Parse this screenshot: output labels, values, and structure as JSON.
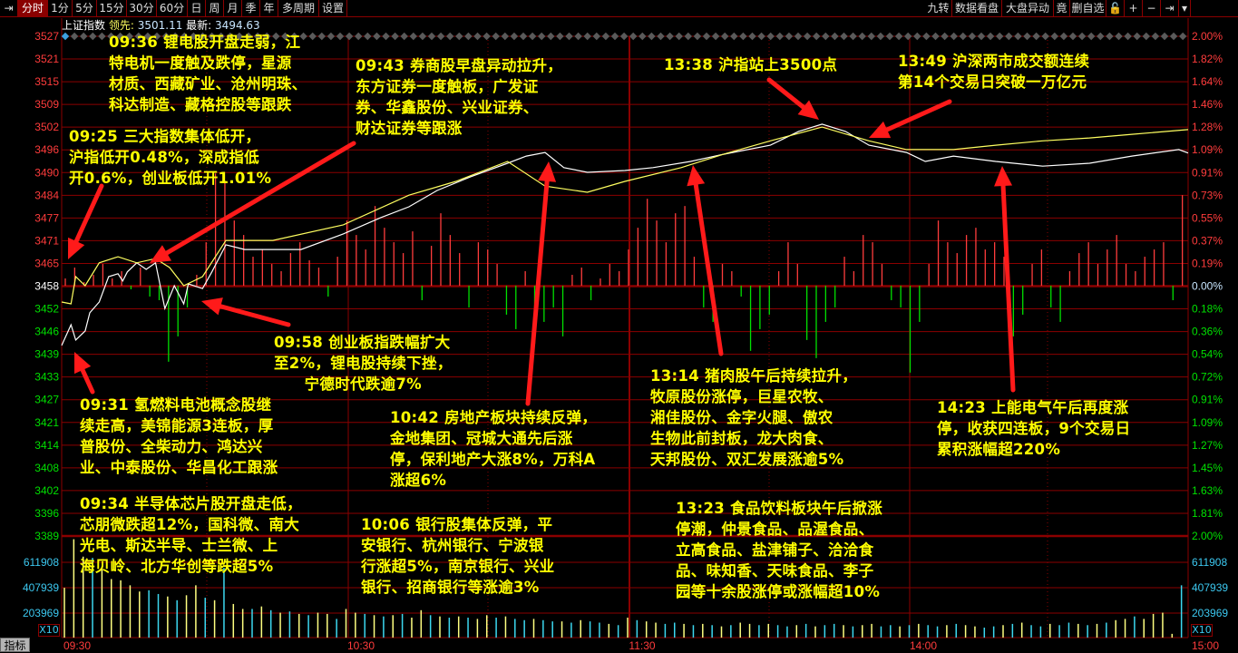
{
  "toolbar": {
    "left": [
      {
        "label": "⇥",
        "icon": "jump-to-end-icon"
      },
      {
        "label": "分时",
        "active": true
      },
      {
        "label": "1分"
      },
      {
        "label": "5分"
      },
      {
        "label": "15分"
      },
      {
        "label": "30分"
      },
      {
        "label": "60分"
      },
      {
        "label": "日"
      },
      {
        "label": "周"
      },
      {
        "label": "月"
      },
      {
        "label": "季"
      },
      {
        "label": "年"
      },
      {
        "label": "多周期"
      },
      {
        "label": "设置"
      }
    ],
    "right": [
      {
        "label": "九转"
      },
      {
        "label": "数据看盘"
      },
      {
        "label": "大盘异动"
      },
      {
        "label": "竟"
      },
      {
        "label": "删自选"
      },
      {
        "label": "🔓",
        "icon": "lock-open-icon"
      },
      {
        "label": "+",
        "icon": "plus-icon"
      },
      {
        "label": "−",
        "icon": "minus-icon"
      },
      {
        "label": "⇥",
        "icon": "jump-to-end-icon"
      },
      {
        "label": "▾",
        "icon": "dropdown-icon"
      }
    ]
  },
  "info": {
    "name": "上证指数",
    "lead_label": "领先:",
    "lead_value": "3501.11",
    "last_label": "最新:",
    "last_value": "3494.63"
  },
  "bottom": {
    "indicator_button": "指标",
    "scale_label": "X10"
  },
  "colors": {
    "up": "#ff3c3c",
    "down": "#00e000",
    "grid": "#8b0000",
    "price_line": "#ffffff",
    "lead_line": "#ffff60",
    "annotation": "#ffff00",
    "arrow": "#ff1a1a",
    "volume_up": "#ffff80",
    "volume_down": "#3cd8f0"
  },
  "chart_data": {
    "type": "line",
    "title": "",
    "x_ticks": [
      "09:30",
      "10:30",
      "11:30",
      "14:00",
      "15:00"
    ],
    "price_ticks": [
      "3527",
      "3521",
      "3515",
      "3509",
      "3502",
      "3496",
      "3490",
      "3484",
      "3477",
      "3471",
      "3465",
      "3458",
      "3452",
      "3446",
      "3439",
      "3433",
      "3427",
      "3421",
      "3414",
      "3408",
      "3402",
      "3396",
      "3389"
    ],
    "pct_ticks": [
      "2.00%",
      "1.82%",
      "1.64%",
      "1.46%",
      "1.28%",
      "1.09%",
      "0.91%",
      "0.73%",
      "0.55%",
      "0.37%",
      "0.19%",
      "0.00%",
      "0.18%",
      "0.36%",
      "0.54%",
      "0.72%",
      "0.91%",
      "1.09%",
      "1.27%",
      "1.45%",
      "1.63%",
      "1.81%",
      "2.00%"
    ],
    "ylim": [
      3389,
      3527
    ],
    "prev_close": 3458,
    "volume_ticks": [
      "611908",
      "407939",
      "203969"
    ],
    "series": [
      {
        "name": "最新",
        "points": [
          [
            "09:30",
            3441.5
          ],
          [
            "09:32",
            3447.2
          ],
          [
            "09:33",
            3443.0
          ],
          [
            "09:35",
            3445.5
          ],
          [
            "09:36",
            3450.5
          ],
          [
            "09:38",
            3453.5
          ],
          [
            "09:40",
            3460.5
          ],
          [
            "09:42",
            3461.3
          ],
          [
            "09:43",
            3459.3
          ],
          [
            "09:44",
            3461.8
          ],
          [
            "09:46",
            3464.3
          ],
          [
            "09:48",
            3462.5
          ],
          [
            "09:50",
            3464.3
          ],
          [
            "09:52",
            3451.7
          ],
          [
            "09:54",
            3458.0
          ],
          [
            "09:56",
            3453.0
          ],
          [
            "09:57",
            3458.5
          ],
          [
            "10:00",
            3457.2
          ],
          [
            "10:02",
            3461.8
          ],
          [
            "10:05",
            3469.3
          ],
          [
            "10:09",
            3468.0
          ],
          [
            "10:15",
            3468.0
          ],
          [
            "10:21",
            3468.0
          ],
          [
            "10:30",
            3472.3
          ],
          [
            "10:38",
            3476.8
          ],
          [
            "10:44",
            3479.8
          ],
          [
            "10:50",
            3484.3
          ],
          [
            "10:57",
            3488.0
          ],
          [
            "11:05",
            3491.8
          ],
          [
            "11:09",
            3493.8
          ],
          [
            "11:13",
            3494.8
          ],
          [
            "11:17",
            3490.6
          ],
          [
            "11:22",
            3489.3
          ],
          [
            "13:00",
            3489.8
          ],
          [
            "13:06",
            3490.6
          ],
          [
            "13:14",
            3492.3
          ],
          [
            "13:21",
            3494.3
          ],
          [
            "13:31",
            3496.8
          ],
          [
            "13:37",
            3500.6
          ],
          [
            "13:42",
            3502.6
          ],
          [
            "13:47",
            3500.6
          ],
          [
            "13:52",
            3496.8
          ],
          [
            "14:00",
            3494.8
          ],
          [
            "14:04",
            3492.3
          ],
          [
            "14:10",
            3493.8
          ],
          [
            "14:19",
            3492.3
          ],
          [
            "14:29",
            3491.0
          ],
          [
            "14:39",
            3491.8
          ],
          [
            "14:48",
            3493.8
          ],
          [
            "14:58",
            3495.6
          ],
          [
            "15:00",
            3494.63
          ]
        ]
      },
      {
        "name": "领先",
        "points": [
          [
            "09:30",
            3453.5
          ],
          [
            "09:32",
            3453.0
          ],
          [
            "09:33",
            3460.5
          ],
          [
            "09:35",
            3458.0
          ],
          [
            "09:38",
            3464.3
          ],
          [
            "09:42",
            3466.0
          ],
          [
            "09:46",
            3464.3
          ],
          [
            "09:50",
            3465.5
          ],
          [
            "09:53",
            3463.0
          ],
          [
            "09:56",
            3458.0
          ],
          [
            "10:00",
            3460.5
          ],
          [
            "10:05",
            3470.5
          ],
          [
            "10:15",
            3470.5
          ],
          [
            "10:30",
            3474.8
          ],
          [
            "10:44",
            3483.0
          ],
          [
            "10:54",
            3486.8
          ],
          [
            "11:05",
            3492.3
          ],
          [
            "11:13",
            3485.5
          ],
          [
            "11:22",
            3483.8
          ],
          [
            "13:00",
            3486.8
          ],
          [
            "13:12",
            3490.6
          ],
          [
            "13:21",
            3494.3
          ],
          [
            "13:31",
            3498.0
          ],
          [
            "13:42",
            3501.8
          ],
          [
            "13:52",
            3498.0
          ],
          [
            "14:00",
            3495.6
          ],
          [
            "14:10",
            3495.6
          ],
          [
            "14:19",
            3496.8
          ],
          [
            "14:29",
            3498.0
          ],
          [
            "14:39",
            3498.8
          ],
          [
            "14:48",
            3499.8
          ],
          [
            "15:00",
            3501.11
          ]
        ]
      }
    ],
    "breadth_bars": [
      2,
      5,
      1,
      3,
      6,
      2,
      4,
      -1,
      5,
      -3,
      -4,
      -21,
      -14,
      -6,
      3,
      12,
      31,
      29,
      18,
      14,
      8,
      10,
      6,
      4,
      9,
      12,
      7,
      5,
      -3,
      8,
      18,
      14,
      10,
      22,
      16,
      12,
      9,
      15,
      -4,
      11,
      20,
      14,
      9,
      -6,
      12,
      10,
      6,
      -8,
      -12,
      4,
      -16,
      -10,
      -6,
      -14,
      3,
      5,
      -4,
      2,
      6,
      4,
      10,
      16,
      24,
      18,
      12,
      20,
      22,
      8,
      -6,
      -10,
      6,
      4,
      -3,
      -18,
      -12,
      -8,
      4,
      12,
      6,
      -15,
      -20,
      -10,
      -6,
      8,
      4,
      14,
      12,
      6,
      -4,
      -6,
      -24,
      -10,
      6,
      18,
      12,
      9,
      14,
      16,
      10,
      12,
      8,
      -14,
      -8,
      6,
      10,
      -6,
      -10,
      4,
      9,
      12,
      6,
      10,
      14,
      6,
      4,
      8,
      10,
      12,
      -4,
      25
    ],
    "volume": [
      400000,
      790000,
      650000,
      640000,
      560000,
      470000,
      460000,
      420000,
      370000,
      380000,
      350000,
      330000,
      300000,
      340000,
      420000,
      320000,
      300000,
      560000,
      270000,
      230000,
      230000,
      250000,
      220000,
      200000,
      210000,
      190000,
      180000,
      200000,
      190000,
      150000,
      230000,
      200000,
      190000,
      180000,
      170000,
      180000,
      190000,
      160000,
      220000,
      180000,
      170000,
      160000,
      170000,
      160000,
      150000,
      180000,
      160000,
      170000,
      150000,
      140000,
      150000,
      140000,
      130000,
      130000,
      120000,
      140000,
      130000,
      120000,
      110000,
      100000,
      160000,
      140000,
      130000,
      120000,
      110000,
      120000,
      110000,
      100000,
      110000,
      100000,
      90000,
      100000,
      120000,
      110000,
      100000,
      110000,
      100000,
      90000,
      100000,
      110000,
      90000,
      100000,
      110000,
      100000,
      90000,
      100000,
      110000,
      90000,
      100000,
      90000,
      100000,
      110000,
      100000,
      90000,
      100000,
      110000,
      100000,
      90000,
      80000,
      90000,
      100000,
      110000,
      120000,
      100000,
      90000,
      110000,
      100000,
      120000,
      110000,
      100000,
      110000,
      120000,
      140000,
      150000,
      170000,
      150000,
      190000,
      200000,
      30000,
      420000
    ],
    "volume_up": [
      1,
      1,
      1,
      0,
      1,
      1,
      1,
      1,
      1,
      0,
      0,
      1,
      0,
      1,
      1,
      0,
      1,
      0,
      1,
      1,
      0,
      1,
      0,
      1,
      0,
      1,
      0,
      1,
      1,
      0,
      1,
      1,
      0,
      1,
      0,
      1,
      0,
      1,
      1,
      0,
      1,
      0,
      1,
      0,
      1,
      1,
      0,
      1,
      0,
      0,
      1,
      0,
      0,
      1,
      0,
      1,
      0,
      0,
      1,
      0,
      1,
      0,
      1,
      1,
      0,
      0,
      1,
      0,
      1,
      0,
      1,
      0,
      1,
      1,
      0,
      1,
      0,
      0,
      1,
      0,
      1,
      0,
      0,
      1,
      0,
      1,
      1,
      0,
      0,
      1,
      0,
      1,
      0,
      0,
      1,
      0,
      1,
      1,
      0,
      0,
      1,
      0,
      1,
      0,
      0,
      1,
      0,
      0,
      1,
      0,
      1,
      0,
      1,
      1,
      0,
      1,
      1,
      1,
      1,
      0
    ]
  },
  "annotations": [
    {
      "lines": [
        "09:36 锂电股开盘走弱，江",
        "特电机一度触及跌停，星源",
        "材质、西藏矿业、沧州明珠、",
        "科达制造、藏格控股等跟跌"
      ]
    },
    {
      "lines": [
        "09:25 三大指数集体低开，",
        "沪指低开0.48%，深成指低",
        "开0.6%，创业板低开1.01%"
      ]
    },
    {
      "lines": [
        "09:43 券商股早盘异动拉升，",
        "东方证券一度触板，广发证",
        "券、华鑫股份、兴业证券、",
        "财达证券等跟涨"
      ]
    },
    {
      "lines": [
        "13:38 沪指站上3500点"
      ]
    },
    {
      "lines": [
        "13:49 沪深两市成交额连续",
        "第14个交易日突破一万亿元"
      ]
    },
    {
      "lines": [
        "09:58 创业板指跌幅扩大",
        "至2%，锂电股持续下挫，",
        "　　宁德时代跌逾7%"
      ]
    },
    {
      "lines": [
        "09:31 氢燃料电池概念股继",
        "续走高，美锦能源3连板，厚",
        "普股份、全柴动力、鸿达兴",
        "业、中泰股份、华昌化工跟涨"
      ]
    },
    {
      "lines": [
        "09:34 半导体芯片股开盘走低，",
        "芯朋微跌超12%，国科微、南大",
        "光电、斯达半导、士兰微、上",
        "海贝岭、北方华创等跌超5%"
      ]
    },
    {
      "lines": [
        "10:42 房地产板块持续反弹，",
        "金地集团、冠城大通先后涨",
        "停，保利地产大涨8%，万科A",
        "涨超6%"
      ]
    },
    {
      "lines": [
        "10:06 银行股集体反弹，平",
        "安银行、杭州银行、宁波银",
        "行涨超5%，南京银行、兴业",
        "银行、招商银行等涨逾3%"
      ]
    },
    {
      "lines": [
        "13:14 猪肉股午后持续拉升，",
        "牧原股份涨停，巨星农牧、",
        "湘佳股份、金字火腿、傲农",
        "生物此前封板，龙大肉食、",
        "天邦股份、双汇发展涨逾5%"
      ]
    },
    {
      "lines": [
        "13:23 食品饮料板块午后掀涨",
        "停潮，仲景食品、品渥食品、",
        "立高食品、盐津铺子、洽洽食",
        "品、味知香、天味食品、李子",
        "园等十余股涨停或涨幅超10%"
      ]
    },
    {
      "lines": [
        "14:23 上能电气午后再度涨",
        "停，收获四连板，9个交易日",
        "累积涨幅超220%"
      ]
    }
  ]
}
